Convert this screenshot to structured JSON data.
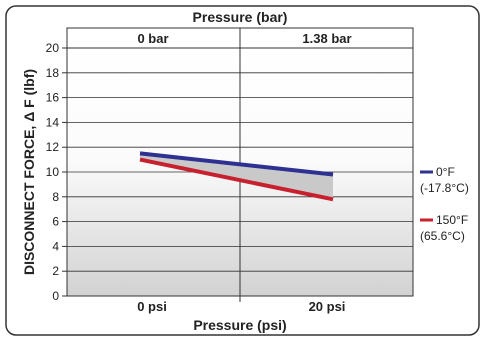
{
  "chart_data": {
    "type": "line",
    "title_top": "Pressure (bar)",
    "top_tick_labels": [
      "0 bar",
      "1.38 bar"
    ],
    "xlabel": "Pressure (psi)",
    "x_categories": [
      "0 psi",
      "20 psi"
    ],
    "ylabel": "DISCONNECT FORCE, Δ F (lbf)",
    "ylim": [
      0,
      20
    ],
    "yticks": [
      0,
      2,
      4,
      6,
      8,
      10,
      12,
      14,
      16,
      18,
      20
    ],
    "grid": true,
    "legend_position": "right",
    "series": [
      {
        "name": "0°F",
        "name_line2": "(-17.8°C)",
        "color": "#2e3192",
        "values": [
          11.5,
          9.8
        ]
      },
      {
        "name": "150°F",
        "name_line2": "(65.6°C)",
        "color": "#c8202f",
        "values": [
          11.0,
          7.8
        ]
      }
    ],
    "fill_between_color": "#c9c9c9"
  }
}
